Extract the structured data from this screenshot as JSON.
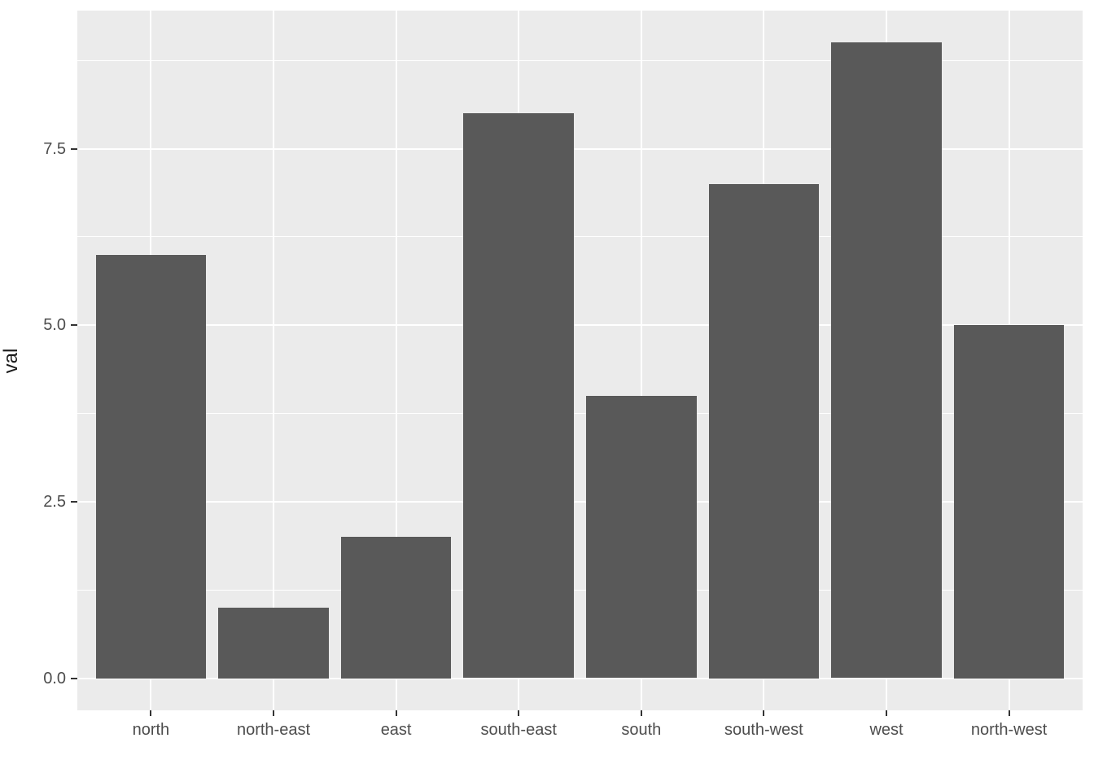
{
  "chart_data": {
    "type": "bar",
    "categories": [
      "north",
      "north-east",
      "east",
      "south-east",
      "south",
      "south-west",
      "west",
      "north-west"
    ],
    "values": [
      6,
      1,
      2,
      8,
      4,
      7,
      9,
      5
    ],
    "title": "",
    "xlabel": "",
    "ylabel": "val",
    "y_ticks": [
      {
        "value": 0,
        "label": "0.0"
      },
      {
        "value": 2.5,
        "label": "2.5"
      },
      {
        "value": 5,
        "label": "5.0"
      },
      {
        "value": 7.5,
        "label": "7.5"
      }
    ],
    "y_minor_ticks": [
      1.25,
      3.75,
      6.25,
      8.75
    ],
    "ylim": [
      -0.455,
      9.455
    ],
    "grid": "horizontal major+minor, vertical major at categories",
    "legend_position": "none",
    "theme": "ggplot2-grey"
  },
  "style": {
    "page_bg": "#FFFFFF",
    "panel_bg": "#EBEBEB",
    "bar_fill": "#595959",
    "grid_color": "#FFFFFF",
    "tick_mark_color": "#333333",
    "tick_label_color": "#4D4D4D",
    "axis_title_color": "#1A1A1A"
  }
}
